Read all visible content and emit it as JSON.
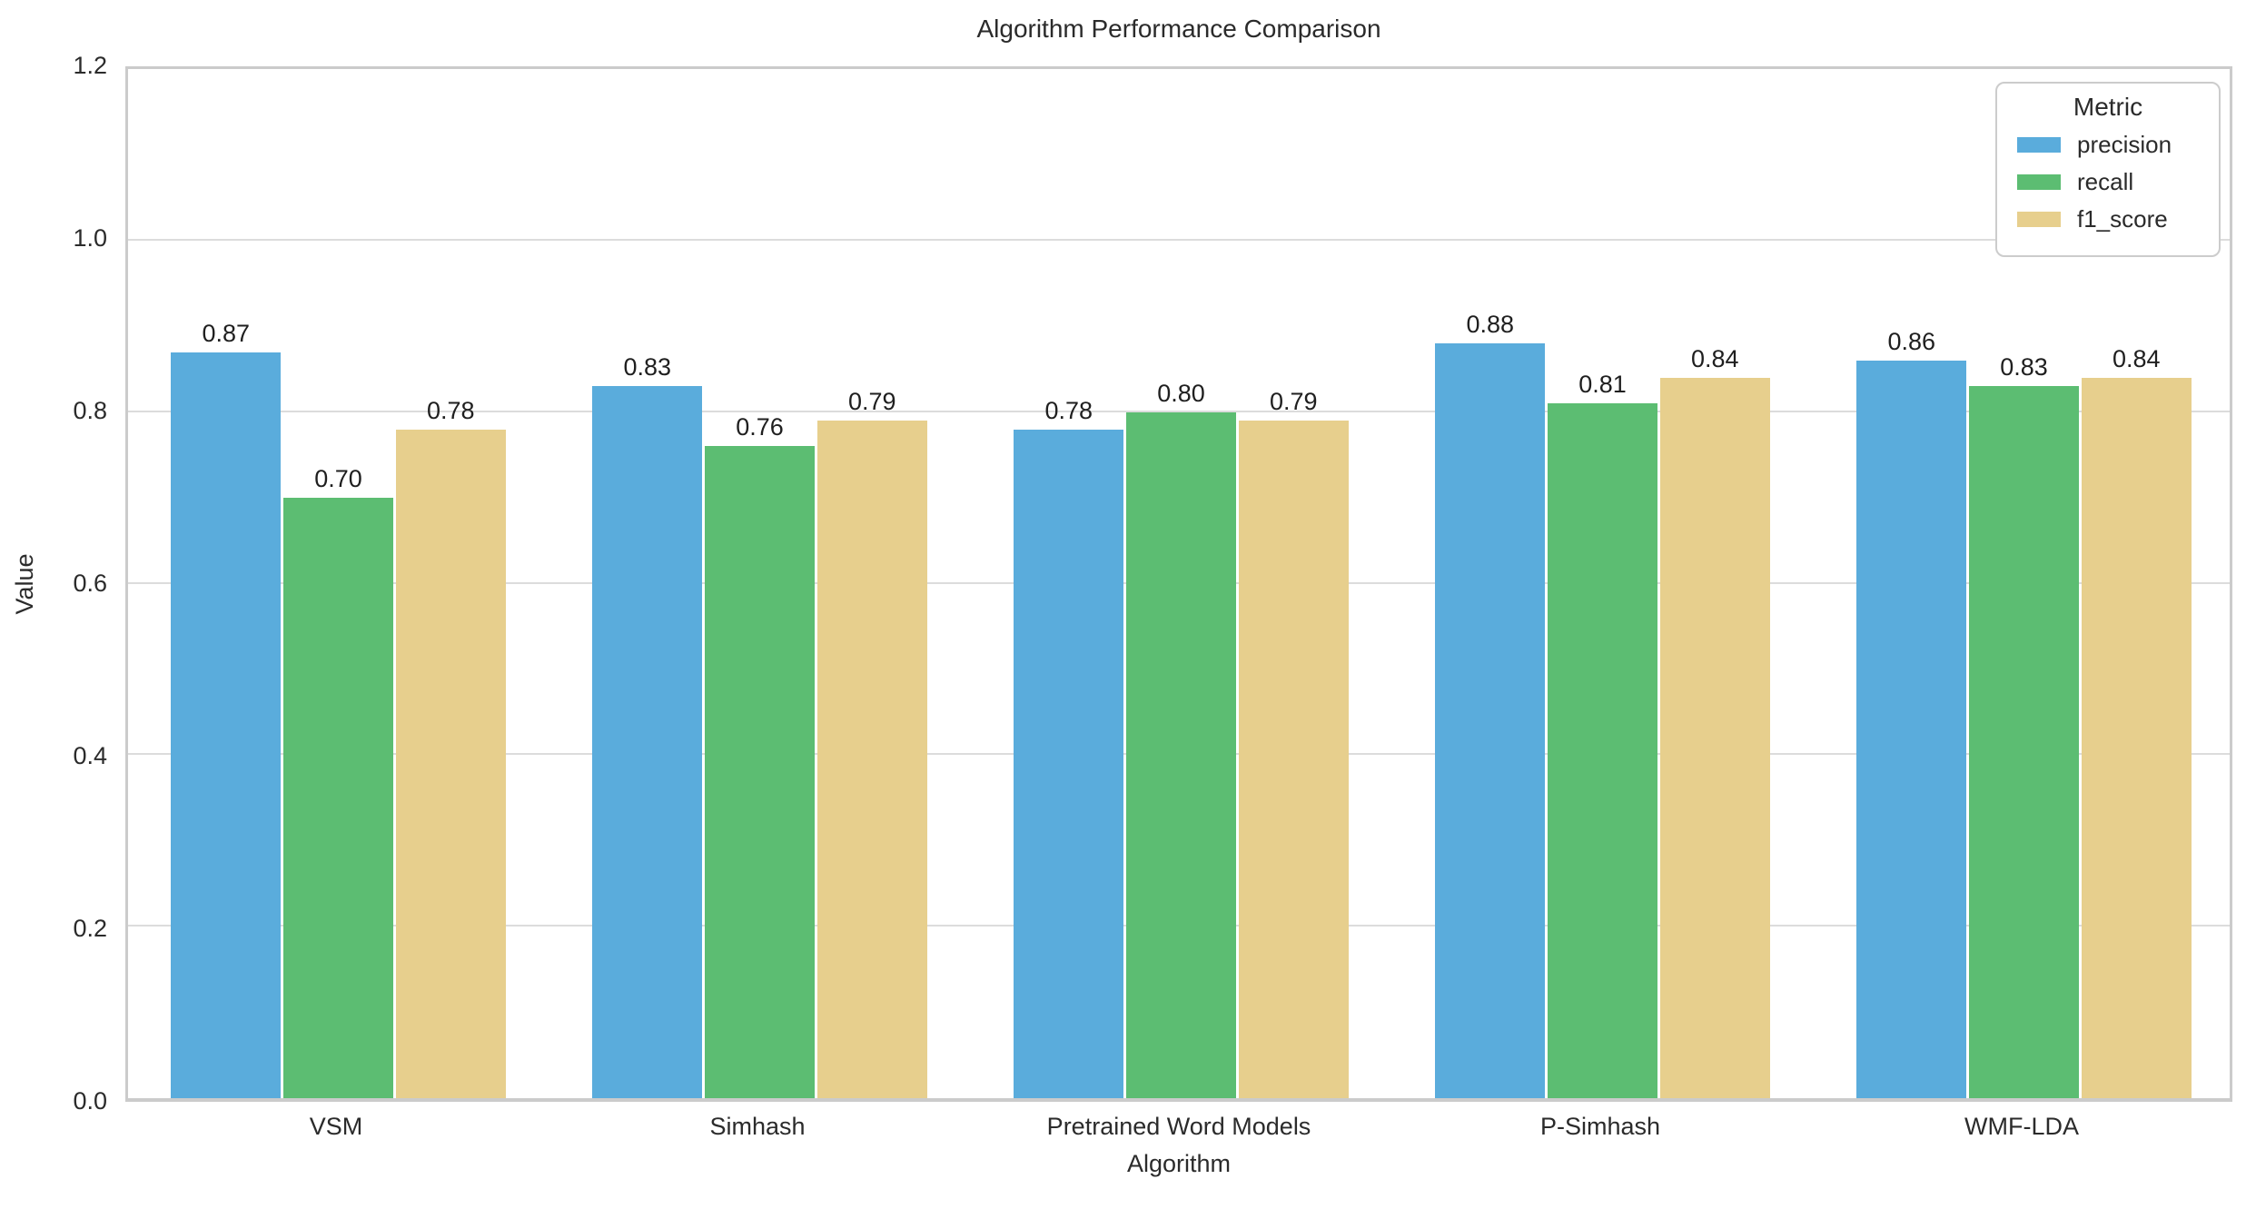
{
  "chart_data": {
    "type": "bar",
    "title": "Algorithm Performance Comparison",
    "xlabel": "Algorithm",
    "ylabel": "Value",
    "categories": [
      "VSM",
      "Simhash",
      "Pretrained Word Models",
      "P-Simhash",
      "WMF-LDA"
    ],
    "series": [
      {
        "name": "precision",
        "color": "#5AACDC",
        "values": [
          0.87,
          0.83,
          0.78,
          0.88,
          0.86
        ],
        "labels": [
          "0.87",
          "0.83",
          "0.78",
          "0.88",
          "0.86"
        ]
      },
      {
        "name": "recall",
        "color": "#5CBD72",
        "values": [
          0.7,
          0.76,
          0.8,
          0.81,
          0.83
        ],
        "labels": [
          "0.70",
          "0.76",
          "0.80",
          "0.81",
          "0.83"
        ]
      },
      {
        "name": "f1_score",
        "color": "#E7CF8D",
        "values": [
          0.78,
          0.79,
          0.79,
          0.84,
          0.84
        ],
        "labels": [
          "0.78",
          "0.79",
          "0.79",
          "0.84",
          "0.84"
        ]
      }
    ],
    "ylim": [
      0.0,
      1.2
    ],
    "yticks": [
      "0.0",
      "0.2",
      "0.4",
      "0.6",
      "0.8",
      "1.0",
      "1.2"
    ],
    "grid": true,
    "legend": {
      "title": "Metric",
      "position": "upper right"
    },
    "colors": {
      "grid": "#dcdcdc",
      "spine": "#cbcbcb",
      "text": "#2b2b2b",
      "background": "#ffffff"
    }
  }
}
